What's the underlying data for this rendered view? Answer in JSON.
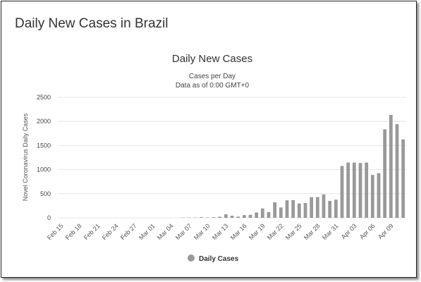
{
  "page": {
    "title": "Daily New Cases in Brazil"
  },
  "chart_data": {
    "type": "bar",
    "title": "Daily New Cases",
    "subtitle_line1": "Cases per Day",
    "subtitle_line2": "Data as of 0:00 GMT+0",
    "ylabel": "Novel Coronavirus Daily Cases",
    "xlabel": "",
    "ylim": [
      0,
      2500
    ],
    "yticks": [
      0,
      500,
      1000,
      1500,
      2000,
      2500
    ],
    "grid": true,
    "legend_position": "bottom-center",
    "bar_color": "#999999",
    "categories": [
      "Feb 15",
      "Feb 16",
      "Feb 17",
      "Feb 18",
      "Feb 19",
      "Feb 20",
      "Feb 21",
      "Feb 22",
      "Feb 23",
      "Feb 24",
      "Feb 25",
      "Feb 26",
      "Feb 27",
      "Feb 28",
      "Feb 29",
      "Mar 01",
      "Mar 02",
      "Mar 03",
      "Mar 04",
      "Mar 05",
      "Mar 06",
      "Mar 07",
      "Mar 08",
      "Mar 09",
      "Mar 10",
      "Mar 11",
      "Mar 12",
      "Mar 13",
      "Mar 14",
      "Mar 15",
      "Mar 16",
      "Mar 17",
      "Mar 18",
      "Mar 19",
      "Mar 20",
      "Mar 21",
      "Mar 22",
      "Mar 23",
      "Mar 24",
      "Mar 25",
      "Mar 26",
      "Mar 27",
      "Mar 28",
      "Mar 29",
      "Mar 30",
      "Mar 31",
      "Apr 01",
      "Apr 02",
      "Apr 03",
      "Apr 04",
      "Apr 05",
      "Apr 06",
      "Apr 07",
      "Apr 08",
      "Apr 09",
      "Apr 10",
      "Apr 11"
    ],
    "x_tick_labels": [
      "Feb 15",
      "Feb 18",
      "Feb 21",
      "Feb 24",
      "Feb 27",
      "Mar 01",
      "Mar 04",
      "Mar 07",
      "Mar 10",
      "Mar 13",
      "Mar 16",
      "Mar 19",
      "Mar 22",
      "Mar 25",
      "Mar 28",
      "Mar 31",
      "Apr 03",
      "Apr 06",
      "Apr 09"
    ],
    "series": [
      {
        "name": "Daily Cases",
        "values": [
          0,
          0,
          0,
          0,
          0,
          0,
          0,
          0,
          0,
          0,
          1,
          0,
          0,
          0,
          1,
          0,
          0,
          1,
          1,
          0,
          5,
          6,
          6,
          12,
          9,
          13,
          23,
          73,
          44,
          25,
          58,
          63,
          111,
          195,
          120,
          321,
          215,
          364,
          368,
          298,
          305,
          429,
          431,
          486,
          352,
          377,
          1076,
          1146,
          1146,
          1138,
          1146,
          889,
          926,
          1837,
          2136,
          1943,
          1626
        ]
      }
    ]
  },
  "legend": {
    "label": "Daily Cases"
  }
}
